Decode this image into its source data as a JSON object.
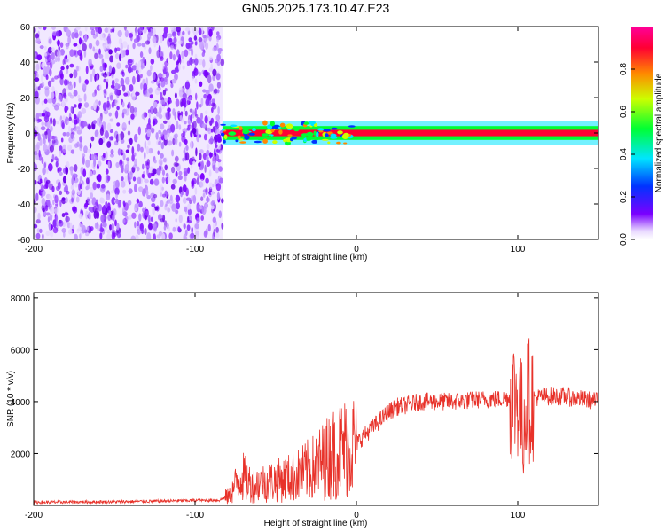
{
  "title": "GN05.2025.173.10.47.E23",
  "chart_data": [
    {
      "type": "heatmap",
      "xlabel": "Height of straight line (km)",
      "ylabel": "Frequency (Hz)",
      "xlim": [
        -200,
        150
      ],
      "ylim": [
        -60,
        60
      ],
      "x_ticks": [
        -200,
        -100,
        0,
        100
      ],
      "y_ticks": [
        60,
        40,
        20,
        0,
        -20,
        -40,
        -60
      ],
      "colorbar": {
        "label": "Normalized spectral amplitude",
        "range": [
          0,
          1
        ],
        "ticks": [
          0.0,
          0.2,
          0.4,
          0.6,
          0.8
        ],
        "colors": [
          "#ffffff",
          "#7a00ff",
          "#0033ff",
          "#00e5ff",
          "#00ff33",
          "#ccff00",
          "#ff8800",
          "#ff0033",
          "#ff0099"
        ]
      },
      "regions": [
        {
          "x_range": [
            -200,
            -83
          ],
          "freq_range": [
            -60,
            60
          ],
          "amplitude": 0.1,
          "pattern": "broadband noise"
        },
        {
          "x_range": [
            -83,
            150
          ],
          "freq_center": 0,
          "freq_width": 3,
          "amplitude": 0.9,
          "pattern": "narrow band near 0 Hz"
        }
      ],
      "grid": false
    },
    {
      "type": "line",
      "xlabel": "Height of straight line (km)",
      "ylabel": "SNR (10 * v/v)",
      "xlim": [
        -200,
        150
      ],
      "ylim": [
        0,
        8200
      ],
      "x_ticks": [
        -200,
        -100,
        0,
        100
      ],
      "y_ticks": [
        2000,
        4000,
        6000,
        8000
      ],
      "series": [
        {
          "color": "#e8322a",
          "x": [
            -200,
            -175,
            -150,
            -125,
            -100,
            -85,
            -78,
            -72,
            -65,
            -55,
            -45,
            -35,
            -25,
            -15,
            -5,
            0,
            5,
            10,
            15,
            20,
            25,
            30,
            40,
            50,
            60,
            70,
            80,
            90,
            95,
            100,
            103,
            105,
            108,
            115,
            125,
            140,
            150
          ],
          "y": [
            120,
            130,
            140,
            160,
            190,
            200,
            400,
            1200,
            800,
            900,
            1000,
            1200,
            1500,
            2000,
            2300,
            2400,
            2700,
            3000,
            3300,
            3600,
            3800,
            3850,
            4000,
            4000,
            4000,
            4050,
            4100,
            4100,
            4150,
            4200,
            3000,
            4000,
            4100,
            4200,
            4200,
            4100,
            4000
          ]
        }
      ],
      "grid": false
    }
  ]
}
